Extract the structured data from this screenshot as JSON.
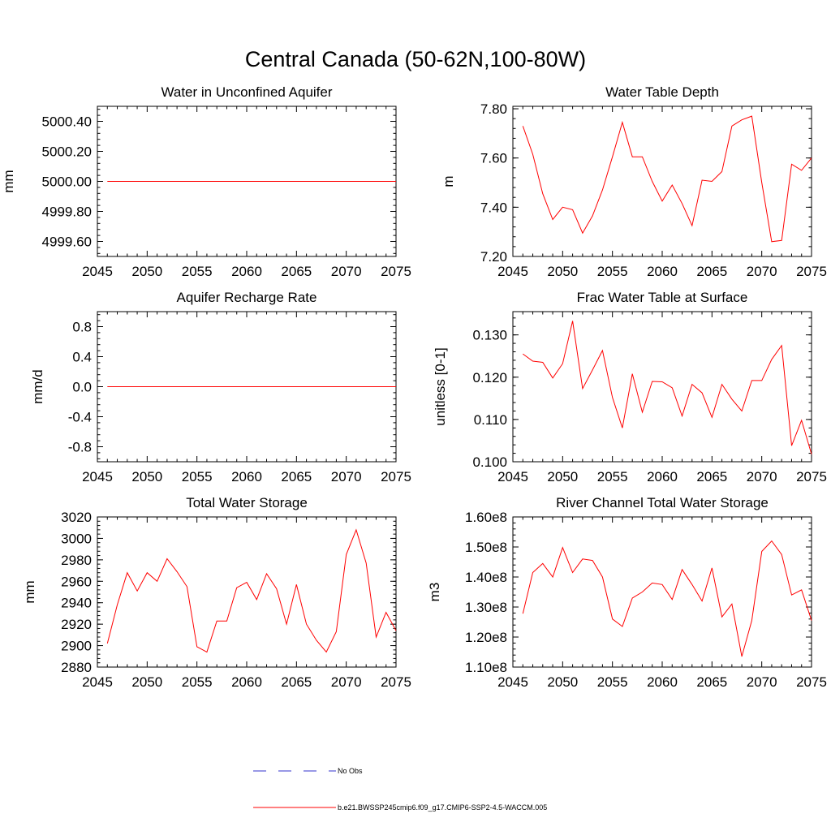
{
  "figure": {
    "title": "Central Canada (50-62N,100-80W)"
  },
  "legend": {
    "entries": [
      {
        "label": "No Obs",
        "color": "#3333cc",
        "dash": "dashed"
      },
      {
        "label": "b.e21.BWSSP245cmip6.f09_g17.CMIP6-SSP2-4.5-WACCM.005",
        "color": "#ff0000",
        "dash": "solid"
      }
    ]
  },
  "colors": {
    "series": "#ff0000",
    "axis": "#000000",
    "obs": "#3333cc"
  },
  "chart_data": [
    {
      "type": "line",
      "title": "Water in Unconfined Aquifer",
      "xlabel": "",
      "ylabel": "mm",
      "xlim": [
        2045,
        2075
      ],
      "ylim": [
        4999.5,
        5000.5
      ],
      "xticks": [
        2045,
        2050,
        2055,
        2060,
        2065,
        2070,
        2075
      ],
      "yticks": [
        4999.6,
        4999.8,
        5000.0,
        5000.2,
        5000.4
      ],
      "ytick_labels": [
        "4999.60",
        "4999.80",
        "5000.00",
        "5000.20",
        "5000.40"
      ],
      "yminor": 0.04,
      "x": [
        2046,
        2047,
        2048,
        2049,
        2050,
        2051,
        2052,
        2053,
        2054,
        2055,
        2056,
        2057,
        2058,
        2059,
        2060,
        2061,
        2062,
        2063,
        2064,
        2065,
        2066,
        2067,
        2068,
        2069,
        2070,
        2071,
        2072,
        2073,
        2074,
        2075
      ],
      "series": [
        {
          "name": "b.e21.BWSSP245cmip6.f09_g17.CMIP6-SSP2-4.5-WACCM.005",
          "values": [
            5000,
            5000,
            5000,
            5000,
            5000,
            5000,
            5000,
            5000,
            5000,
            5000,
            5000,
            5000,
            5000,
            5000,
            5000,
            5000,
            5000,
            5000,
            5000,
            5000,
            5000,
            5000,
            5000,
            5000,
            5000,
            5000,
            5000,
            5000,
            5000,
            5000
          ]
        }
      ]
    },
    {
      "type": "line",
      "title": "Water Table Depth",
      "xlabel": "",
      "ylabel": "m",
      "xlim": [
        2045,
        2075
      ],
      "ylim": [
        7.2,
        7.81
      ],
      "xticks": [
        2045,
        2050,
        2055,
        2060,
        2065,
        2070,
        2075
      ],
      "yticks": [
        7.2,
        7.4,
        7.6,
        7.8
      ],
      "ytick_labels": [
        "7.20",
        "7.40",
        "7.60",
        "7.80"
      ],
      "yminor": 0.04,
      "x": [
        2046,
        2047,
        2048,
        2049,
        2050,
        2051,
        2052,
        2053,
        2054,
        2055,
        2056,
        2057,
        2058,
        2059,
        2060,
        2061,
        2062,
        2063,
        2064,
        2065,
        2066,
        2067,
        2068,
        2069,
        2070,
        2071,
        2072,
        2073,
        2074,
        2075
      ],
      "series": [
        {
          "name": "b.e21.BWSSP245cmip6.f09_g17.CMIP6-SSP2-4.5-WACCM.005",
          "values": [
            7.73,
            7.615,
            7.455,
            7.35,
            7.4,
            7.39,
            7.295,
            7.365,
            7.47,
            7.605,
            7.745,
            7.605,
            7.605,
            7.505,
            7.425,
            7.49,
            7.415,
            7.325,
            7.51,
            7.505,
            7.545,
            7.73,
            7.755,
            7.77,
            7.5,
            7.26,
            7.265,
            7.575,
            7.55,
            7.6
          ]
        }
      ]
    },
    {
      "type": "line",
      "title": "Aquifer Recharge Rate",
      "xlabel": "",
      "ylabel": "mm/d",
      "xlim": [
        2045,
        2075
      ],
      "ylim": [
        -1.0,
        1.0
      ],
      "xticks": [
        2045,
        2050,
        2055,
        2060,
        2065,
        2070,
        2075
      ],
      "yticks": [
        -0.8,
        -0.4,
        0.0,
        0.4,
        0.8
      ],
      "ytick_labels": [
        "-0.8",
        "-0.4",
        "0.0",
        "0.4",
        "0.8"
      ],
      "yminor": 0.08,
      "x": [
        2046,
        2047,
        2048,
        2049,
        2050,
        2051,
        2052,
        2053,
        2054,
        2055,
        2056,
        2057,
        2058,
        2059,
        2060,
        2061,
        2062,
        2063,
        2064,
        2065,
        2066,
        2067,
        2068,
        2069,
        2070,
        2071,
        2072,
        2073,
        2074,
        2075
      ],
      "series": [
        {
          "name": "b.e21.BWSSP245cmip6.f09_g17.CMIP6-SSP2-4.5-WACCM.005",
          "values": [
            0,
            0,
            0,
            0,
            0,
            0,
            0,
            0,
            0,
            0,
            0,
            0,
            0,
            0,
            0,
            0,
            0,
            0,
            0,
            0,
            0,
            0,
            0,
            0,
            0,
            0,
            0,
            0,
            0,
            0
          ]
        }
      ]
    },
    {
      "type": "line",
      "title": "Frac Water Table at Surface",
      "xlabel": "",
      "ylabel": "unitless [0-1]",
      "xlim": [
        2045,
        2075
      ],
      "ylim": [
        0.1,
        0.1355
      ],
      "xticks": [
        2045,
        2050,
        2055,
        2060,
        2065,
        2070,
        2075
      ],
      "yticks": [
        0.1,
        0.11,
        0.12,
        0.13
      ],
      "ytick_labels": [
        "0.100",
        "0.110",
        "0.120",
        "0.130"
      ],
      "yminor": 0.002,
      "x": [
        2046,
        2047,
        2048,
        2049,
        2050,
        2051,
        2052,
        2053,
        2054,
        2055,
        2056,
        2057,
        2058,
        2059,
        2060,
        2061,
        2062,
        2063,
        2064,
        2065,
        2066,
        2067,
        2068,
        2069,
        2070,
        2071,
        2072,
        2073,
        2074,
        2075
      ],
      "series": [
        {
          "name": "b.e21.BWSSP245cmip6.f09_g17.CMIP6-SSP2-4.5-WACCM.005",
          "values": [
            0.1255,
            0.1238,
            0.1235,
            0.1198,
            0.1232,
            0.1333,
            0.1173,
            0.1217,
            0.1263,
            0.1152,
            0.108,
            0.1208,
            0.1117,
            0.119,
            0.1189,
            0.1175,
            0.1108,
            0.1183,
            0.1163,
            0.1105,
            0.1183,
            0.1148,
            0.112,
            0.1192,
            0.1192,
            0.1242,
            0.1275,
            0.1038,
            0.1098,
            0.1018
          ]
        }
      ]
    },
    {
      "type": "line",
      "title": "Total Water Storage",
      "xlabel": "",
      "ylabel": "mm",
      "xlim": [
        2045,
        2075
      ],
      "ylim": [
        2880,
        3020
      ],
      "xticks": [
        2045,
        2050,
        2055,
        2060,
        2065,
        2070,
        2075
      ],
      "yticks": [
        2880,
        2900,
        2920,
        2940,
        2960,
        2980,
        3000,
        3020
      ],
      "ytick_labels": [
        "2880",
        "2900",
        "2920",
        "2940",
        "2960",
        "2980",
        "3000",
        "3020"
      ],
      "yminor": 4,
      "x": [
        2046,
        2047,
        2048,
        2049,
        2050,
        2051,
        2052,
        2053,
        2054,
        2055,
        2056,
        2057,
        2058,
        2059,
        2060,
        2061,
        2062,
        2063,
        2064,
        2065,
        2066,
        2067,
        2068,
        2069,
        2070,
        2071,
        2072,
        2073,
        2074,
        2075
      ],
      "series": [
        {
          "name": "b.e21.BWSSP245cmip6.f09_g17.CMIP6-SSP2-4.5-WACCM.005",
          "values": [
            2902,
            2938,
            2968,
            2951,
            2968,
            2960,
            2981,
            2969,
            2955,
            2899,
            2894,
            2923,
            2923,
            2954,
            2959,
            2943,
            2967,
            2953,
            2920,
            2957,
            2920,
            2905,
            2894,
            2913,
            2985,
            3008,
            2977,
            2908,
            2931,
            2914
          ]
        }
      ]
    },
    {
      "type": "line",
      "title": "River Channel Total Water Storage",
      "xlabel": "",
      "ylabel": "m3",
      "xlim": [
        2045,
        2075
      ],
      "ylim": [
        110000000,
        160000000
      ],
      "xticks": [
        2045,
        2050,
        2055,
        2060,
        2065,
        2070,
        2075
      ],
      "yticks": [
        110000000,
        120000000,
        130000000,
        140000000,
        150000000,
        160000000
      ],
      "ytick_labels": [
        "1.10e8",
        "1.20e8",
        "1.30e8",
        "1.40e8",
        "1.50e8",
        "1.60e8"
      ],
      "yminor": 2000000,
      "x": [
        2046,
        2047,
        2048,
        2049,
        2050,
        2051,
        2052,
        2053,
        2054,
        2055,
        2056,
        2057,
        2058,
        2059,
        2060,
        2061,
        2062,
        2063,
        2064,
        2065,
        2066,
        2067,
        2068,
        2069,
        2070,
        2071,
        2072,
        2073,
        2074,
        2075
      ],
      "series": [
        {
          "name": "b.e21.BWSSP245cmip6.f09_g17.CMIP6-SSP2-4.5-WACCM.005",
          "values": [
            127800000,
            141500000,
            144500000,
            140000000,
            149800000,
            141500000,
            146000000,
            145500000,
            140000000,
            126000000,
            123500000,
            133000000,
            135000000,
            138000000,
            137500000,
            132500000,
            142500000,
            137500000,
            132000000,
            143000000,
            126700000,
            131000000,
            113500000,
            125500000,
            148500000,
            152000000,
            147500000,
            134000000,
            135700000,
            125500000
          ]
        }
      ]
    }
  ]
}
